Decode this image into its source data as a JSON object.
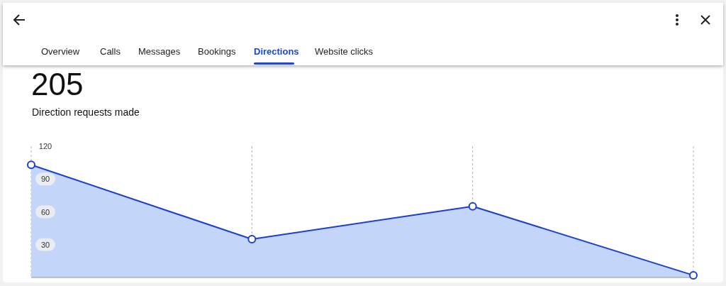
{
  "chart_data": {
    "type": "area",
    "title": "205",
    "subtitle": "Direction requests made",
    "annotations": [
      "Overview",
      "Calls",
      "Messages",
      "Bookings",
      "Directions",
      "Website clicks"
    ],
    "categories": [
      null,
      null,
      null,
      null
    ],
    "series": [
      {
        "color": "#1a3fd6",
        "values": [
          103,
          35,
          65,
          2
        ]
      }
    ],
    "ylim": [
      0,
      120
    ],
    "yticks": [
      30,
      60,
      90,
      120
    ],
    "grid": "x",
    "marker": "circle"
  }
}
